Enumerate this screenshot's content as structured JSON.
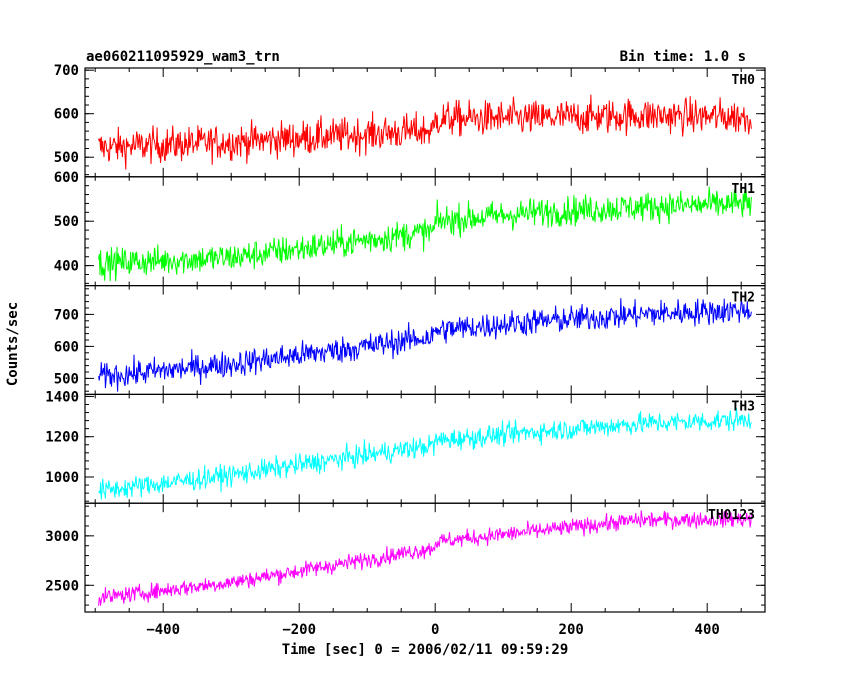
{
  "title_left": "ae060211095929_wam3_trn",
  "title_right": "Bin time: 1.0 s",
  "chart_data": {
    "type": "line",
    "xlabel": "Time [sec] 0 = 2006/02/11 09:59:29",
    "ylabel": "Counts/sec",
    "xlim": [
      -515,
      485
    ],
    "x_ticks": [
      -400,
      -200,
      0,
      200,
      400
    ],
    "x_range_data": [
      -495,
      465
    ],
    "grid": false,
    "panels": [
      {
        "name": "TH0",
        "color": "#ff0000",
        "ylim": [
          455,
          705
        ],
        "y_ticks": [
          500,
          600,
          700
        ],
        "trend": [
          [
            -495,
            522
          ],
          [
            -300,
            535
          ],
          [
            -100,
            553
          ],
          [
            -1,
            562
          ],
          [
            0,
            588
          ],
          [
            150,
            590
          ],
          [
            300,
            596
          ],
          [
            465,
            592
          ]
        ],
        "noise": 34
      },
      {
        "name": "TH1",
        "color": "#00ff00",
        "ylim": [
          355,
          600
        ],
        "y_ticks": [
          400,
          500,
          600
        ],
        "trend": [
          [
            -495,
            405
          ],
          [
            -300,
            418
          ],
          [
            -100,
            458
          ],
          [
            -1,
            478
          ],
          [
            0,
            500
          ],
          [
            150,
            520
          ],
          [
            300,
            532
          ],
          [
            465,
            540
          ]
        ],
        "noise": 28
      },
      {
        "name": "TH2",
        "color": "#0000ff",
        "ylim": [
          450,
          790
        ],
        "y_ticks": [
          500,
          600,
          700
        ],
        "trend": [
          [
            -495,
            505
          ],
          [
            -300,
            545
          ],
          [
            -100,
            600
          ],
          [
            -1,
            632
          ],
          [
            0,
            650
          ],
          [
            150,
            678
          ],
          [
            300,
            700
          ],
          [
            465,
            715
          ]
        ],
        "noise": 35
      },
      {
        "name": "TH3",
        "color": "#00ffff",
        "ylim": [
          870,
          1410
        ],
        "y_ticks": [
          1000,
          1200,
          1400
        ],
        "trend": [
          [
            -495,
            930
          ],
          [
            -300,
            1010
          ],
          [
            -100,
            1110
          ],
          [
            -1,
            1158
          ],
          [
            0,
            1180
          ],
          [
            150,
            1225
          ],
          [
            300,
            1265
          ],
          [
            465,
            1285
          ]
        ],
        "noise": 45
      },
      {
        "name": "TH0123",
        "color": "#ff00ff",
        "ylim": [
          2230,
          3330
        ],
        "y_ticks": [
          2500,
          3000
        ],
        "trend": [
          [
            -495,
            2370
          ],
          [
            -300,
            2530
          ],
          [
            -100,
            2760
          ],
          [
            -1,
            2880
          ],
          [
            0,
            2940
          ],
          [
            150,
            3050
          ],
          [
            300,
            3160
          ],
          [
            465,
            3170
          ]
        ],
        "noise": 70
      }
    ]
  }
}
